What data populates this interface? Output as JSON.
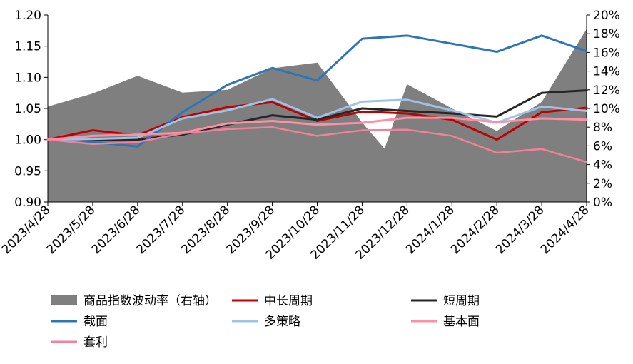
{
  "chart_data": {
    "type": "line",
    "title": "",
    "xlabel": "",
    "ylabel": "",
    "categories": [
      "2023/4/28",
      "2023/5/28",
      "2023/6/28",
      "2023/7/28",
      "2023/8/28",
      "2023/9/28",
      "2023/10/28",
      "2023/11/28",
      "2023/12/28",
      "2024/1/28",
      "2024/2/28",
      "2024/3/28",
      "2024/4/28"
    ],
    "left_axis": {
      "ylim": [
        0.9,
        1.2
      ],
      "ticks": [
        "0.90",
        "0.95",
        "1.00",
        "1.05",
        "1.10",
        "1.15",
        "1.20"
      ],
      "tick_values": [
        0.9,
        0.95,
        1.0,
        1.05,
        1.1,
        1.15,
        1.2
      ]
    },
    "right_axis": {
      "ylim": [
        0,
        20
      ],
      "ticks": [
        "0%",
        "2%",
        "4%",
        "6%",
        "8%",
        "10%",
        "12%",
        "14%",
        "16%",
        "18%",
        "20%"
      ],
      "tick_values": [
        0,
        2,
        4,
        6,
        8,
        10,
        12,
        14,
        16,
        18,
        20
      ]
    },
    "area_series": {
      "name": "商品指数波动率（右轴）",
      "axis": "right",
      "color": "#7f7f7f",
      "x": [
        0,
        1,
        2,
        3,
        4,
        5,
        6,
        7,
        7.5,
        8,
        9,
        10,
        11,
        12
      ],
      "values": [
        10.2,
        11.6,
        13.5,
        11.7,
        12.0,
        14.3,
        14.9,
        8.5,
        5.7,
        12.6,
        10.0,
        7.6,
        10.7,
        18.5
      ]
    },
    "series": [
      {
        "name": "中长周期",
        "color": "#c00000",
        "width": 3,
        "values": [
          1.0,
          1.015,
          1.007,
          1.036,
          1.052,
          1.06,
          1.03,
          1.045,
          1.042,
          1.032,
          1.0,
          1.044,
          1.051
        ]
      },
      {
        "name": "短周期",
        "color": "#262626",
        "width": 3,
        "values": [
          1.0,
          0.999,
          1.0,
          1.008,
          1.024,
          1.039,
          1.032,
          1.05,
          1.046,
          1.042,
          1.037,
          1.075,
          1.079
        ]
      },
      {
        "name": "截面",
        "color": "#2e75b6",
        "width": 3,
        "values": [
          1.0,
          0.996,
          0.989,
          1.044,
          1.088,
          1.115,
          1.095,
          1.162,
          1.167,
          1.154,
          1.141,
          1.167,
          1.142
        ]
      },
      {
        "name": "多策略",
        "color": "#9dc3e6",
        "width": 3,
        "values": [
          1.0,
          1.001,
          1.003,
          1.034,
          1.047,
          1.065,
          1.035,
          1.061,
          1.064,
          1.047,
          1.027,
          1.053,
          1.046
        ]
      },
      {
        "name": "基本面",
        "color": "#ff8fa3",
        "width": 3,
        "values": [
          1.0,
          1.006,
          1.008,
          1.011,
          1.026,
          1.03,
          1.024,
          1.027,
          1.035,
          1.035,
          1.028,
          1.034,
          1.032
        ]
      },
      {
        "name": "套利",
        "color": "#f4809a",
        "width": 2.5,
        "values": [
          1.0,
          0.993,
          0.996,
          1.01,
          1.017,
          1.02,
          1.006,
          1.015,
          1.016,
          1.006,
          0.979,
          0.985,
          0.964
        ]
      }
    ],
    "legend": {
      "placement": "bottom",
      "entries": [
        "商品指数波动率（右轴）",
        "中长周期",
        "短周期",
        "截面",
        "多策略",
        "基本面",
        "套利"
      ]
    }
  }
}
